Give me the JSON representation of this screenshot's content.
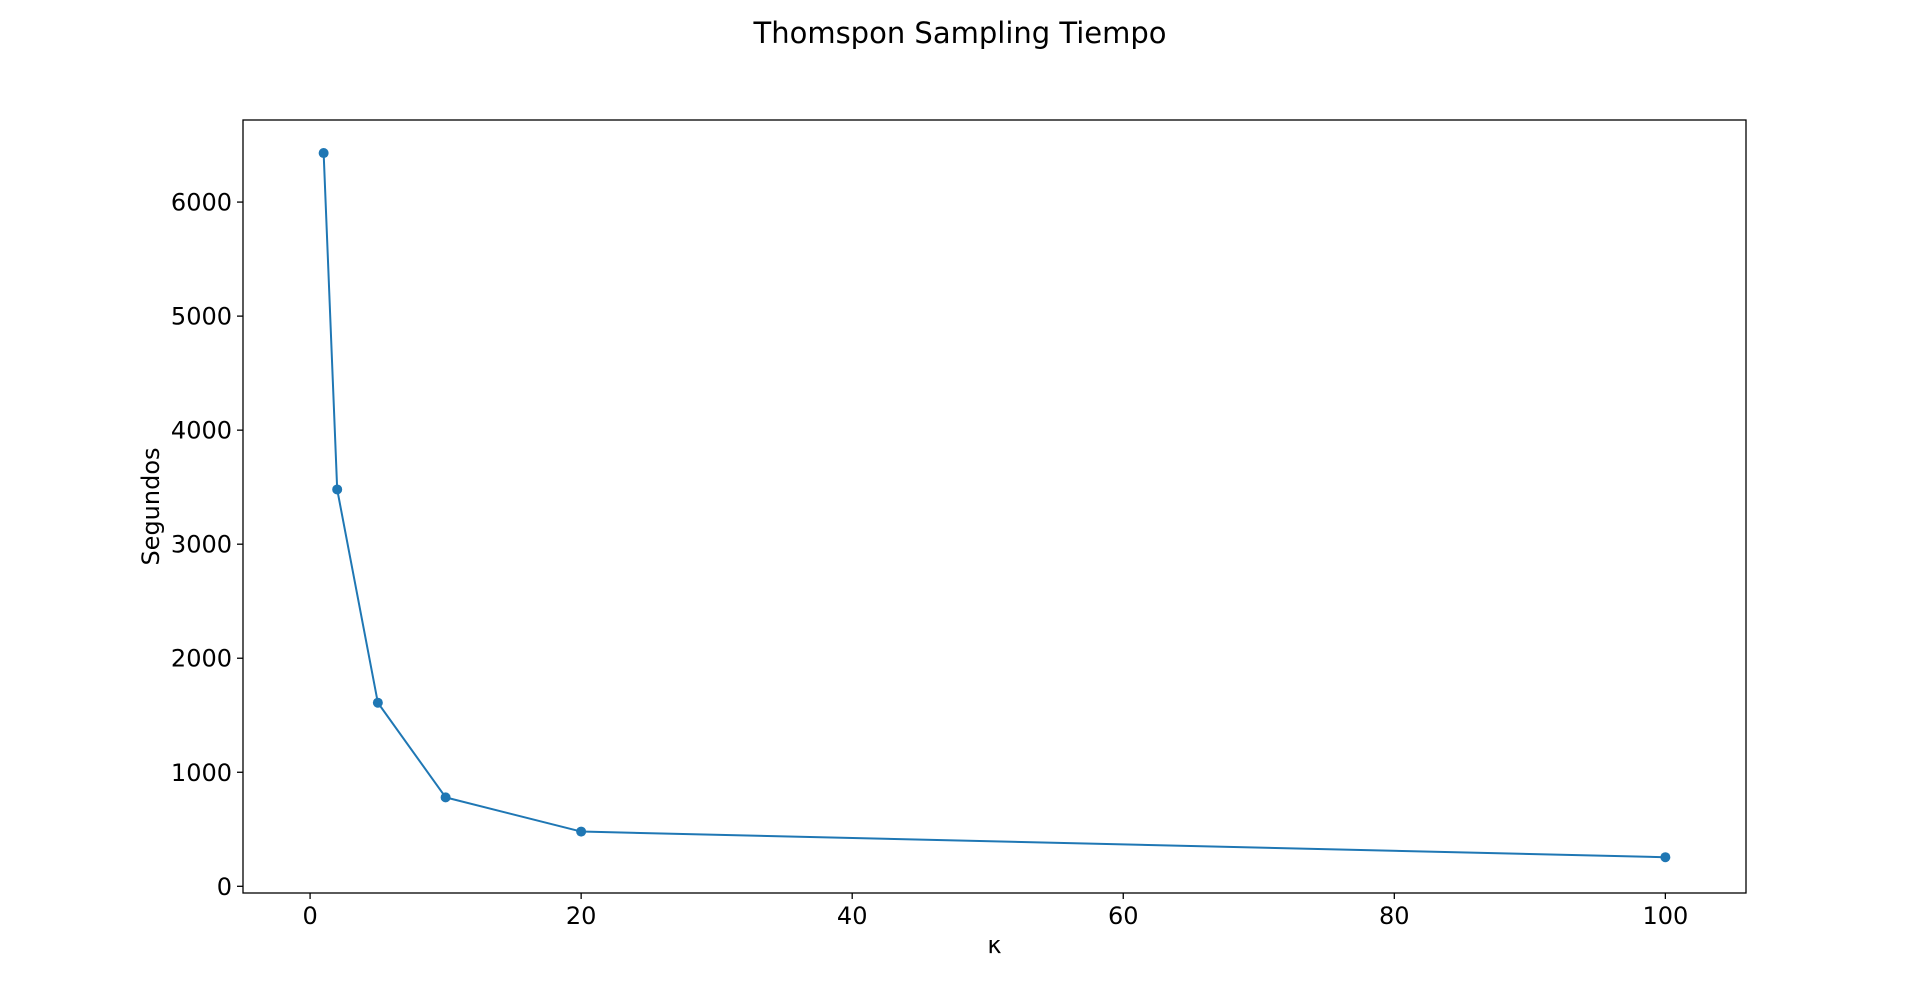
{
  "chart_data": {
    "type": "line",
    "title": "Thomspon Sampling Tiempo",
    "xlabel": "κ",
    "ylabel": "Segundos",
    "x": [
      1,
      2,
      5,
      10,
      20,
      100
    ],
    "series": [
      {
        "values": [
          6430,
          3480,
          1610,
          780,
          480,
          255
        ],
        "color": "#1f77b4",
        "marker": "circle"
      }
    ],
    "xlim": [
      -4.95,
      105.95
    ],
    "ylim": [
      -58.75,
      6719.75
    ],
    "xticks": [
      0,
      20,
      40,
      60,
      80,
      100
    ],
    "xtick_labels": [
      "0",
      "20",
      "40",
      "60",
      "80",
      "100"
    ],
    "yticks": [
      0,
      1000,
      2000,
      3000,
      4000,
      5000,
      6000
    ],
    "ytick_labels": [
      "0",
      "1000",
      "2000",
      "3000",
      "4000",
      "5000",
      "6000"
    ],
    "grid": false,
    "legend": "none"
  }
}
